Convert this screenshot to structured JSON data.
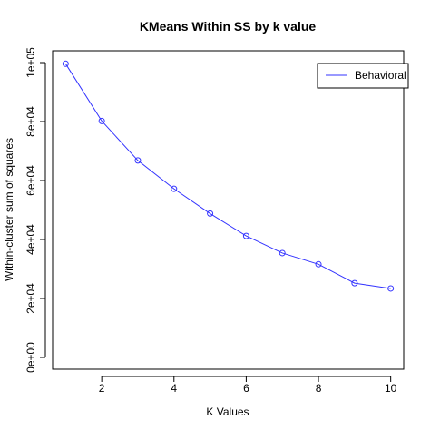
{
  "chart_data": {
    "type": "line",
    "title": "KMeans Within SS by k value",
    "xlabel": "K Values",
    "ylabel": "Within-cluster sum of squares",
    "xlim": [
      0.64,
      10.36
    ],
    "ylim": [
      -4000,
      104000
    ],
    "x_ticks": [
      2,
      4,
      6,
      8,
      10
    ],
    "x_tick_labels": [
      "2",
      "4",
      "6",
      "8",
      "10"
    ],
    "y_ticks": [
      0,
      20000,
      40000,
      60000,
      80000,
      100000
    ],
    "y_tick_labels": [
      "0e+00",
      "2e+04",
      "4e+04",
      "6e+04",
      "8e+04",
      "1e+05"
    ],
    "grid": false,
    "legend_position": "top-right",
    "series": [
      {
        "name": "Behavioral",
        "color": "#3333ff",
        "marker": "open-circle",
        "x": [
          1,
          2,
          3,
          4,
          5,
          6,
          7,
          8,
          9,
          10
        ],
        "values": [
          99600,
          80200,
          66800,
          57200,
          48800,
          41200,
          35400,
          31600,
          25200,
          23400
        ]
      }
    ]
  }
}
